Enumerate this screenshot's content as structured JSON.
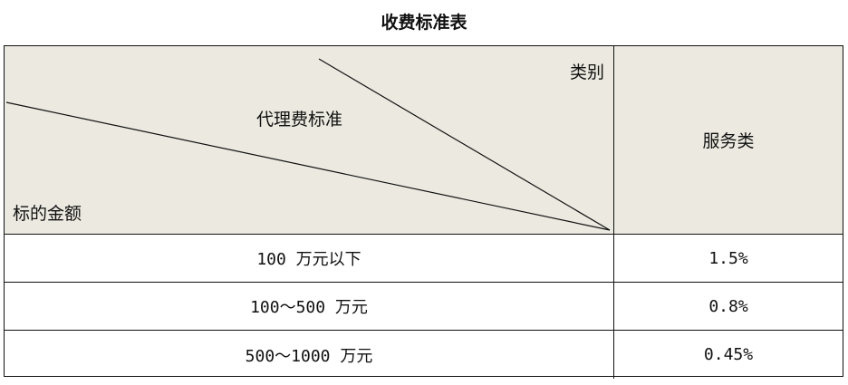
{
  "title": "收费标准表",
  "header": {
    "category": "类别",
    "standard": "代理费标准",
    "amount": "标的金额",
    "service": "服务类"
  },
  "rows": [
    {
      "amount": "100 万元以下",
      "rate": "1.5%"
    },
    {
      "amount": "100～500 万元",
      "rate": "0.8%"
    },
    {
      "amount": "500～1000 万元",
      "rate": "0.45%"
    }
  ],
  "colors": {
    "header_bg": "#ECEAE0"
  }
}
